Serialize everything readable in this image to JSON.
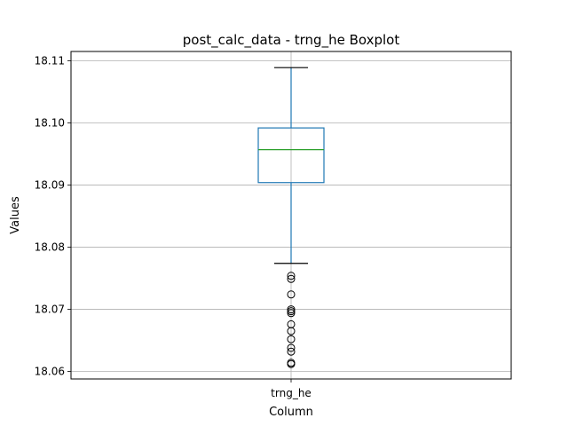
{
  "chart_data": {
    "type": "box",
    "title": "post_calc_data - trng_he Boxplot",
    "xlabel": "Column",
    "ylabel": "Values",
    "categories": [
      "trng_he"
    ],
    "ylim": [
      18.0588,
      18.1115
    ],
    "yticks": [
      18.06,
      18.07,
      18.08,
      18.09,
      18.1,
      18.11
    ],
    "ytick_labels": [
      "18.06",
      "18.07",
      "18.08",
      "18.09",
      "18.10",
      "18.11"
    ],
    "grid": true,
    "box": {
      "whisker_low": 18.0774,
      "q1": 18.0904,
      "median": 18.0957,
      "q3": 18.0992,
      "whisker_high": 18.1089
    },
    "outliers": [
      18.0754,
      18.0749,
      18.0724,
      18.07,
      18.0697,
      18.0694,
      18.0676,
      18.0665,
      18.0652,
      18.0638,
      18.0632,
      18.0614,
      18.0612
    ],
    "colors": {
      "box": "#1f77b4",
      "median": "#2ca02c",
      "whisker_cap": "#000000",
      "outlier": "#000000",
      "grid": "#b0b0b0"
    }
  }
}
